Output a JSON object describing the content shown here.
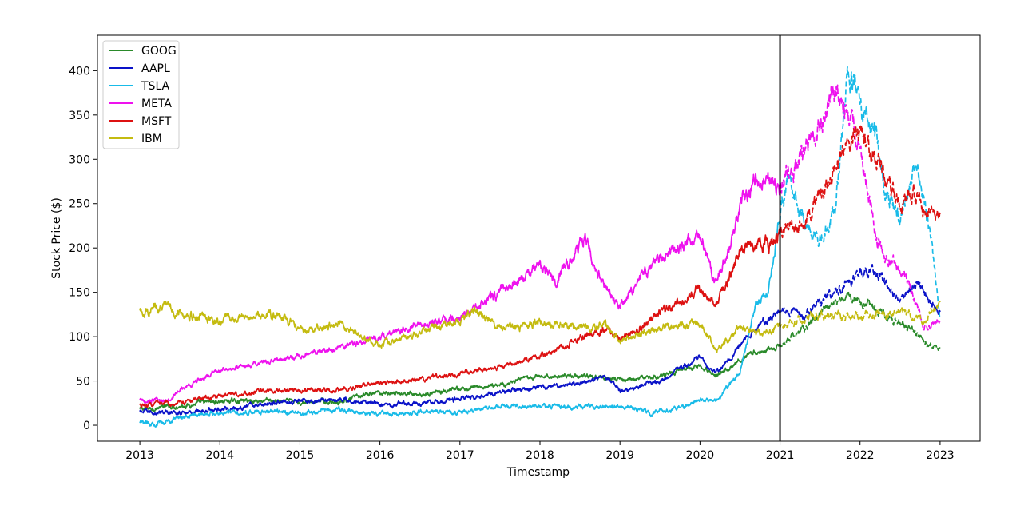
{
  "chart_data": {
    "type": "line",
    "title": "",
    "xlabel": "Timestamp",
    "ylabel": "Stock Price ($)",
    "xlim": [
      2012.47,
      2023.5
    ],
    "ylim": [
      -18,
      440
    ],
    "x_ticks": [
      2013,
      2014,
      2015,
      2016,
      2017,
      2018,
      2019,
      2020,
      2021,
      2022,
      2023
    ],
    "x_tick_labels": [
      "2013",
      "2014",
      "2015",
      "2016",
      "2017",
      "2018",
      "2019",
      "2020",
      "2021",
      "2022",
      "2023"
    ],
    "y_ticks": [
      0,
      50,
      100,
      150,
      200,
      250,
      300,
      350,
      400
    ],
    "y_tick_labels": [
      "0",
      "50",
      "100",
      "150",
      "200",
      "250",
      "300",
      "350",
      "400"
    ],
    "grid": false,
    "legend_position": "top-left",
    "split_x": 2021,
    "split_line_color": "#000000",
    "style_before_split": "solid",
    "style_after_split": "dashed",
    "series": [
      {
        "name": "GOOG",
        "color": "#2a8a2a",
        "points": [
          [
            2013.0,
            18
          ],
          [
            2013.5,
            22
          ],
          [
            2014.0,
            27
          ],
          [
            2014.5,
            28
          ],
          [
            2015.0,
            26
          ],
          [
            2015.5,
            27
          ],
          [
            2016.0,
            37
          ],
          [
            2016.5,
            35
          ],
          [
            2017.0,
            40
          ],
          [
            2017.5,
            46
          ],
          [
            2018.0,
            55
          ],
          [
            2018.5,
            56
          ],
          [
            2019.0,
            52
          ],
          [
            2019.5,
            55
          ],
          [
            2020.0,
            68
          ],
          [
            2020.2,
            56
          ],
          [
            2020.5,
            75
          ],
          [
            2020.8,
            85
          ],
          [
            2021.0,
            88
          ],
          [
            2021.3,
            110
          ],
          [
            2021.6,
            135
          ],
          [
            2021.85,
            145
          ],
          [
            2022.0,
            143
          ],
          [
            2022.3,
            125
          ],
          [
            2022.5,
            115
          ],
          [
            2022.7,
            104
          ],
          [
            2022.85,
            90
          ],
          [
            2023.0,
            88
          ]
        ]
      },
      {
        "name": "AAPL",
        "color": "#0a12c8",
        "points": [
          [
            2013.0,
            15
          ],
          [
            2013.5,
            14
          ],
          [
            2014.0,
            18
          ],
          [
            2014.5,
            23
          ],
          [
            2015.0,
            27
          ],
          [
            2015.5,
            30
          ],
          [
            2016.0,
            24
          ],
          [
            2016.5,
            25
          ],
          [
            2017.0,
            29
          ],
          [
            2017.5,
            37
          ],
          [
            2018.0,
            43
          ],
          [
            2018.5,
            48
          ],
          [
            2018.8,
            55
          ],
          [
            2019.0,
            38
          ],
          [
            2019.5,
            50
          ],
          [
            2020.0,
            77
          ],
          [
            2020.2,
            58
          ],
          [
            2020.5,
            90
          ],
          [
            2020.8,
            118
          ],
          [
            2021.0,
            130
          ],
          [
            2021.3,
            125
          ],
          [
            2021.6,
            145
          ],
          [
            2021.9,
            165
          ],
          [
            2022.0,
            177
          ],
          [
            2022.3,
            165
          ],
          [
            2022.5,
            140
          ],
          [
            2022.7,
            160
          ],
          [
            2022.85,
            145
          ],
          [
            2023.0,
            128
          ]
        ]
      },
      {
        "name": "TSLA",
        "color": "#19bbe8",
        "points": [
          [
            2013.0,
            2
          ],
          [
            2013.3,
            3
          ],
          [
            2013.5,
            10
          ],
          [
            2014.0,
            15
          ],
          [
            2014.5,
            15
          ],
          [
            2015.0,
            14
          ],
          [
            2015.5,
            17
          ],
          [
            2016.0,
            12
          ],
          [
            2016.5,
            15
          ],
          [
            2017.0,
            14
          ],
          [
            2017.5,
            22
          ],
          [
            2018.0,
            22
          ],
          [
            2018.5,
            20
          ],
          [
            2019.0,
            22
          ],
          [
            2019.4,
            14
          ],
          [
            2019.8,
            20
          ],
          [
            2020.0,
            30
          ],
          [
            2020.2,
            27
          ],
          [
            2020.5,
            60
          ],
          [
            2020.7,
            140
          ],
          [
            2020.85,
            150
          ],
          [
            2021.0,
            240
          ],
          [
            2021.1,
            280
          ],
          [
            2021.3,
            230
          ],
          [
            2021.5,
            210
          ],
          [
            2021.7,
            250
          ],
          [
            2021.85,
            400
          ],
          [
            2022.0,
            355
          ],
          [
            2022.2,
            330
          ],
          [
            2022.3,
            270
          ],
          [
            2022.5,
            230
          ],
          [
            2022.7,
            295
          ],
          [
            2022.85,
            230
          ],
          [
            2023.0,
            120
          ]
        ]
      },
      {
        "name": "META",
        "color": "#ee12ee",
        "points": [
          [
            2013.0,
            28
          ],
          [
            2013.3,
            27
          ],
          [
            2013.6,
            45
          ],
          [
            2014.0,
            62
          ],
          [
            2014.5,
            70
          ],
          [
            2015.0,
            78
          ],
          [
            2015.5,
            88
          ],
          [
            2016.0,
            100
          ],
          [
            2016.5,
            115
          ],
          [
            2017.0,
            122
          ],
          [
            2017.5,
            150
          ],
          [
            2018.0,
            180
          ],
          [
            2018.2,
            162
          ],
          [
            2018.55,
            212
          ],
          [
            2018.8,
            160
          ],
          [
            2019.0,
            135
          ],
          [
            2019.5,
            190
          ],
          [
            2020.0,
            215
          ],
          [
            2020.2,
            158
          ],
          [
            2020.5,
            240
          ],
          [
            2020.7,
            280
          ],
          [
            2021.0,
            270
          ],
          [
            2021.2,
            295
          ],
          [
            2021.5,
            340
          ],
          [
            2021.7,
            375
          ],
          [
            2021.9,
            335
          ],
          [
            2022.0,
            320
          ],
          [
            2022.2,
            210
          ],
          [
            2022.4,
            185
          ],
          [
            2022.6,
            165
          ],
          [
            2022.8,
            110
          ],
          [
            2023.0,
            118
          ]
        ]
      },
      {
        "name": "MSFT",
        "color": "#dd1111",
        "points": [
          [
            2013.0,
            22
          ],
          [
            2013.5,
            26
          ],
          [
            2014.0,
            33
          ],
          [
            2014.5,
            38
          ],
          [
            2015.0,
            40
          ],
          [
            2015.5,
            40
          ],
          [
            2016.0,
            48
          ],
          [
            2016.5,
            52
          ],
          [
            2017.0,
            58
          ],
          [
            2017.5,
            66
          ],
          [
            2018.0,
            78
          ],
          [
            2018.5,
            98
          ],
          [
            2018.8,
            108
          ],
          [
            2019.0,
            98
          ],
          [
            2019.5,
            125
          ],
          [
            2020.0,
            155
          ],
          [
            2020.2,
            135
          ],
          [
            2020.5,
            195
          ],
          [
            2020.8,
            205
          ],
          [
            2021.0,
            212
          ],
          [
            2021.3,
            235
          ],
          [
            2021.6,
            270
          ],
          [
            2021.9,
            325
          ],
          [
            2022.0,
            335
          ],
          [
            2022.2,
            300
          ],
          [
            2022.5,
            250
          ],
          [
            2022.7,
            262
          ],
          [
            2022.85,
            232
          ],
          [
            2023.0,
            238
          ]
        ]
      },
      {
        "name": "IBM",
        "color": "#c4bb10",
        "points": [
          [
            2013.0,
            128
          ],
          [
            2013.3,
            135
          ],
          [
            2013.6,
            125
          ],
          [
            2014.0,
            118
          ],
          [
            2014.5,
            125
          ],
          [
            2014.8,
            122
          ],
          [
            2015.0,
            105
          ],
          [
            2015.5,
            115
          ],
          [
            2015.8,
            100
          ],
          [
            2016.0,
            90
          ],
          [
            2016.5,
            105
          ],
          [
            2017.0,
            118
          ],
          [
            2017.2,
            130
          ],
          [
            2017.5,
            110
          ],
          [
            2018.0,
            115
          ],
          [
            2018.5,
            110
          ],
          [
            2018.8,
            115
          ],
          [
            2019.0,
            95
          ],
          [
            2019.5,
            110
          ],
          [
            2020.0,
            115
          ],
          [
            2020.2,
            85
          ],
          [
            2020.5,
            108
          ],
          [
            2020.8,
            105
          ],
          [
            2021.0,
            112
          ],
          [
            2021.3,
            120
          ],
          [
            2021.6,
            125
          ],
          [
            2021.9,
            120
          ],
          [
            2022.0,
            122
          ],
          [
            2022.3,
            130
          ],
          [
            2022.6,
            125
          ],
          [
            2022.8,
            115
          ],
          [
            2023.0,
            140
          ]
        ]
      }
    ]
  }
}
